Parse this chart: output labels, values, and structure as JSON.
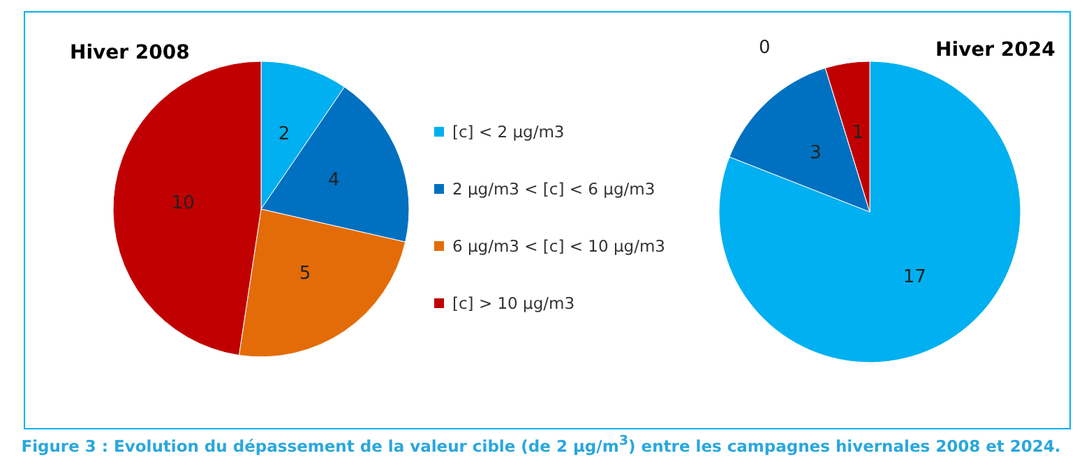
{
  "chart_data": [
    {
      "type": "pie",
      "title": "Hiver 2008",
      "categories": [
        "[c] < 2 µg/m3",
        "2 µg/m3 < [c] < 6 µg/m3",
        "6 µg/m3 < [c] < 10 µg/m3",
        "[c] > 10 µg/m3"
      ],
      "values": [
        2,
        4,
        5,
        10
      ],
      "colors": [
        "#00b0f0",
        "#0070c0",
        "#e36c09",
        "#c00000"
      ],
      "data_labels": true,
      "legend": "right",
      "annotations": [
        "Figure 3 : Evolution du dépassement de la valeur cible (de 2 µg/m$^{3}$) entre les campagnes hivernales 2008 et 2024."
      ]
    },
    {
      "type": "pie",
      "title": "Hiver 2024",
      "categories": [
        null,
        null,
        null,
        null
      ],
      "values": [
        17,
        3,
        0,
        1
      ],
      "value_labels": [
        "17",
        "3",
        "0",
        "1"
      ],
      "colors": [
        "#00b0f0",
        "#0070c0",
        "#e36c09",
        "#c00000"
      ]
    }
  ]
}
